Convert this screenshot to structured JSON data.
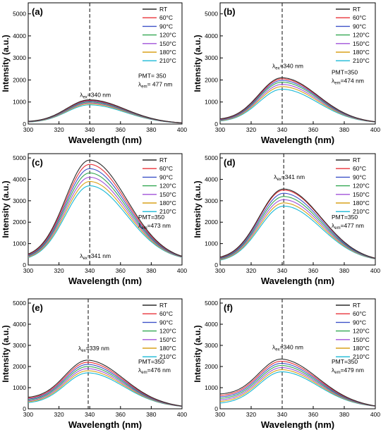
{
  "chart_data": [
    {
      "type": "line",
      "panel": "(a)",
      "xlabel": "Wavelength (nm)",
      "ylabel": "Intensity (a.u.)",
      "xlim": [
        300,
        400
      ],
      "ylim": [
        0,
        5500
      ],
      "xticks": [
        300,
        320,
        340,
        360,
        380,
        400
      ],
      "yticks": [
        0,
        1000,
        2000,
        3000,
        4000,
        5000
      ],
      "legend": [
        "RT",
        "60°C",
        "90°C",
        "120°C",
        "150°C",
        "180°C",
        "210°C"
      ],
      "peak_x": 340,
      "peaks": [
        1100,
        1070,
        1040,
        1000,
        960,
        920,
        870
      ],
      "base300": [
        95,
        90,
        85,
        80,
        75,
        70,
        65
      ],
      "tail400": 20,
      "width": 20,
      "lambda_ex": "340 nm",
      "pmt": "PMT= 350",
      "lambda_em": "= 477 nm"
    },
    {
      "type": "line",
      "panel": "(b)",
      "xlabel": "Wavelength (nm)",
      "ylabel": "Intensity (a.u.)",
      "xlim": [
        300,
        400
      ],
      "ylim": [
        0,
        5500
      ],
      "xticks": [
        300,
        320,
        340,
        360,
        380,
        400
      ],
      "yticks": [
        0,
        1000,
        2000,
        3000,
        4000,
        5000
      ],
      "legend": [
        "RT",
        "60°C",
        "90°C",
        "120°C",
        "150°C",
        "180°C",
        "210°C"
      ],
      "peak_x": 340,
      "peaks": [
        2100,
        2050,
        1980,
        1900,
        1800,
        1700,
        1580
      ],
      "base300": [
        180,
        165,
        150,
        140,
        125,
        110,
        95
      ],
      "tail400": 40,
      "width": 20,
      "lambda_ex": "340 nm",
      "pmt": "PMT=350",
      "lambda_em": "=474 nm"
    },
    {
      "type": "line",
      "panel": "(c)",
      "xlabel": "Wavelength (nm)",
      "ylabel": "Intensity (a.u.)",
      "xlim": [
        300,
        400
      ],
      "ylim": [
        0,
        5200
      ],
      "xticks": [
        300,
        320,
        340,
        360,
        380,
        400
      ],
      "yticks": [
        0,
        1000,
        2000,
        3000,
        4000,
        5000
      ],
      "legend": [
        "RT",
        "60°C",
        "90°C",
        "120°C",
        "150°C",
        "180°C",
        "210°C"
      ],
      "peak_x": 340,
      "peaks": [
        4900,
        4700,
        4500,
        4300,
        4100,
        3900,
        3700
      ],
      "base300": [
        330,
        310,
        290,
        270,
        250,
        230,
        210
      ],
      "tail400": 200,
      "width": 21,
      "lambda_ex": "341 nm",
      "pmt": "PMT=350",
      "lambda_em": "=473 nm"
    },
    {
      "type": "line",
      "panel": "(d)",
      "xlabel": "Wavelength (nm)",
      "ylabel": "Intensity (a.u.)",
      "xlim": [
        300,
        400
      ],
      "ylim": [
        0,
        5200
      ],
      "xticks": [
        300,
        320,
        340,
        360,
        380,
        400
      ],
      "yticks": [
        0,
        1000,
        2000,
        3000,
        4000,
        5000
      ],
      "legend": [
        "RT",
        "60°C",
        "90°C",
        "120°C",
        "150°C",
        "180°C",
        "210°C"
      ],
      "peak_x": 341,
      "peaks": [
        3550,
        3500,
        3350,
        3200,
        3050,
        2900,
        2750
      ],
      "base300": [
        260,
        240,
        220,
        200,
        180,
        160,
        140
      ],
      "tail400": 150,
      "width": 21,
      "lambda_ex": "341 nm",
      "pmt": "PMT=350",
      "lambda_em": "=477 nm"
    },
    {
      "type": "line",
      "panel": "(e)",
      "xlabel": "Wavelength (nm)",
      "ylabel": "Intensity (a.u.)",
      "xlim": [
        300,
        400
      ],
      "ylim": [
        0,
        5200
      ],
      "xticks": [
        300,
        320,
        340,
        360,
        380,
        400
      ],
      "yticks": [
        0,
        1000,
        2000,
        3000,
        4000,
        5000
      ],
      "legend": [
        "RT",
        "60°C",
        "90°C",
        "120°C",
        "150°C",
        "180°C",
        "210°C"
      ],
      "peak_x": 339,
      "peaks": [
        2300,
        2200,
        2100,
        2000,
        1900,
        1800,
        1700
      ],
      "base300": [
        480,
        440,
        400,
        360,
        320,
        280,
        240
      ],
      "tail400": 70,
      "width": 20,
      "lambda_ex": "339 nm",
      "pmt": "PMT=350",
      "lambda_em": "=476 nm"
    },
    {
      "type": "line",
      "panel": "(f)",
      "xlabel": "Wavelength (nm)",
      "ylabel": "Intensity (a.u.)",
      "xlim": [
        300,
        400
      ],
      "ylim": [
        0,
        5200
      ],
      "xticks": [
        300,
        320,
        340,
        360,
        380,
        400
      ],
      "yticks": [
        0,
        1000,
        2000,
        3000,
        4000,
        5000
      ],
      "legend": [
        "RT",
        "60°C",
        "90°C",
        "120°C",
        "150°C",
        "180°C",
        "210°C"
      ],
      "peak_x": 340,
      "peaks": [
        2350,
        2250,
        2150,
        2050,
        1950,
        1850,
        1750
      ],
      "base300": [
        650,
        580,
        510,
        440,
        370,
        300,
        230
      ],
      "tail400": 70,
      "width": 20,
      "lambda_ex": "340 nm",
      "pmt": "PMT=350",
      "lambda_em": "=479 nm"
    }
  ],
  "colors": [
    "#2b2b2b",
    "#e8333a",
    "#3f52c8",
    "#34a853",
    "#a052d8",
    "#d9a21b",
    "#19b8d6"
  ],
  "lambda_ex_symbol": "λ",
  "lambda_ex_sub": "ex",
  "lambda_em_symbol": "λ",
  "lambda_em_sub": "em"
}
